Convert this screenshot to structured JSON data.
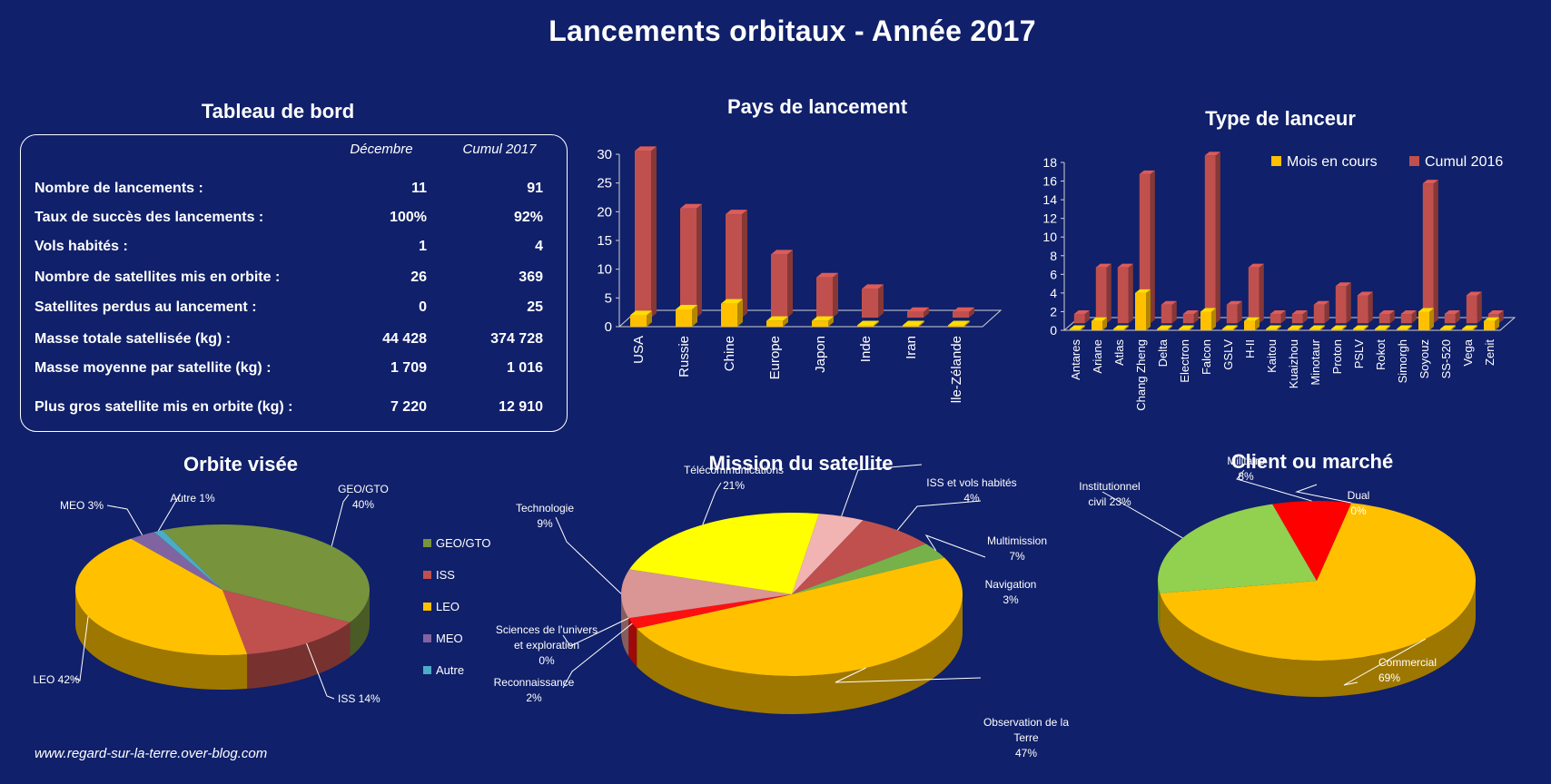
{
  "title": "Lancements orbitaux - Année 2017",
  "footer": "www.regard-sur-la-terre.over-blog.com",
  "colors": {
    "background": "#10206a",
    "mois_en_cours": "#ffc000",
    "cumul": "#c0504d",
    "geo_gto": "#77933c",
    "iss": "#c0504d",
    "leo": "#ffc000",
    "meo": "#8064a2",
    "autre": "#4bacc6"
  },
  "dashboard": {
    "title": "Tableau de bord",
    "col_month": "Décembre",
    "col_cumul": "Cumul 2017",
    "rows": [
      {
        "label": "Nombre de lancements :",
        "month": "11",
        "cumul": "91"
      },
      {
        "label": "Taux de succès des lancements :",
        "month": "100%",
        "cumul": "92%"
      },
      {
        "label": "Vols habités :",
        "month": "1",
        "cumul": "4"
      },
      {
        "label": "Nombre de satellites mis en orbite :",
        "month": "26",
        "cumul": "369"
      },
      {
        "label": "Satellites perdus au lancement :",
        "month": "0",
        "cumul": "25"
      },
      {
        "label": "Masse totale satellisée (kg) :",
        "month": "44 428",
        "cumul": "374 728"
      },
      {
        "label": "Masse moyenne par satellite (kg) :",
        "month": "1 709",
        "cumul": "1 016"
      },
      {
        "label": "Plus gros satellite mis en orbite (kg) :",
        "month": "7 220",
        "cumul": "12 910"
      }
    ]
  },
  "chart_data": [
    {
      "type": "bar",
      "title": "Pays de lancement",
      "categories": [
        "USA",
        "Russie",
        "Chine",
        "Europe",
        "Japon",
        "Inde",
        "Iran",
        "Nouvelle-Zélande"
      ],
      "series": [
        {
          "values": [
            2,
            3,
            4,
            1,
            1,
            0,
            0,
            0
          ]
        },
        {
          "values": [
            29,
            19,
            18,
            11,
            7,
            5,
            1,
            1
          ]
        }
      ],
      "ylim": [
        0,
        30
      ],
      "yticks": [
        "0",
        "5",
        "10",
        "15",
        "20",
        "25",
        "30"
      ]
    },
    {
      "type": "bar",
      "title": "Type de lanceur",
      "categories": [
        "Antares",
        "Ariane",
        "Atlas",
        "Chang Zheng",
        "Delta",
        "Electron",
        "Falcon",
        "GSLV",
        "H-II",
        "Kaitou",
        "Kuaizhou",
        "Minotaur",
        "Proton",
        "PSLV",
        "Rokot",
        "Simorgh",
        "Soyouz",
        "SS-520",
        "Vega",
        "Zenit"
      ],
      "series": [
        {
          "name": "Mois en cours",
          "values": [
            0,
            1,
            0,
            4,
            0,
            0,
            2,
            0,
            1,
            0,
            0,
            0,
            0,
            0,
            0,
            0,
            2,
            0,
            0,
            1
          ]
        },
        {
          "name": "Cumul 2016",
          "values": [
            1,
            6,
            6,
            16,
            2,
            1,
            18,
            2,
            6,
            1,
            1,
            2,
            4,
            3,
            1,
            1,
            15,
            1,
            3,
            1
          ]
        }
      ],
      "ylim": [
        0,
        18
      ],
      "yticks": [
        "0",
        "2",
        "4",
        "6",
        "8",
        "10",
        "12",
        "14",
        "16",
        "18"
      ],
      "legend": "top-right"
    },
    {
      "type": "pie",
      "title": "Orbite visée",
      "slices": [
        {
          "name": "GEO/GTO",
          "value": 40,
          "label_lines": [
            "GEO/GTO",
            "40%"
          ]
        },
        {
          "name": "ISS",
          "value": 14,
          "label_lines": [
            "ISS 14%"
          ]
        },
        {
          "name": "LEO",
          "value": 42,
          "label_lines": [
            "LEO 42%"
          ]
        },
        {
          "name": "MEO",
          "value": 3,
          "label_lines": [
            "MEO 3%"
          ]
        },
        {
          "name": "Autre",
          "value": 1,
          "label_lines": [
            "Autre 1%"
          ]
        }
      ],
      "legend": "right"
    },
    {
      "type": "pie",
      "title": "Mission du satellite",
      "slices": [
        {
          "name": "ISS et vols habités",
          "value": 4,
          "label_lines": [
            "ISS et vols habités",
            "4%"
          ]
        },
        {
          "name": "Multimission",
          "value": 7,
          "label_lines": [
            "Multimission",
            "7%"
          ]
        },
        {
          "name": "Navigation",
          "value": 3,
          "label_lines": [
            "Navigation",
            "3%"
          ]
        },
        {
          "name": "Observation de la Terre",
          "value": 47,
          "label_lines": [
            "Observation de la",
            "Terre",
            "47%"
          ]
        },
        {
          "name": "Reconnaissance",
          "value": 2,
          "label_lines": [
            "Reconnaissance",
            "2%"
          ]
        },
        {
          "name": "Sciences de l'univers et exploration",
          "value": 0,
          "label_lines": [
            "Sciences de l'univers",
            "et exploration",
            "0%"
          ]
        },
        {
          "name": "Technologie",
          "value": 9,
          "label_lines": [
            "Technologie",
            "9%"
          ]
        },
        {
          "name": "Télécommunications",
          "value": 21,
          "label_lines": [
            "Télécommunications",
            "21%"
          ]
        }
      ]
    },
    {
      "type": "pie",
      "title": "Client ou marché",
      "slices": [
        {
          "name": "Dual",
          "value": 0,
          "label_lines": [
            "Dual",
            "0%"
          ]
        },
        {
          "name": "Commercial",
          "value": 69,
          "label_lines": [
            "Commercial",
            "69%"
          ]
        },
        {
          "name": "Institutionnel civil",
          "value": 23,
          "label_lines": [
            "Institutionnel",
            "civil 23%"
          ]
        },
        {
          "name": "Militaire",
          "value": 8,
          "label_lines": [
            "Militaire",
            "8%"
          ]
        }
      ]
    }
  ]
}
